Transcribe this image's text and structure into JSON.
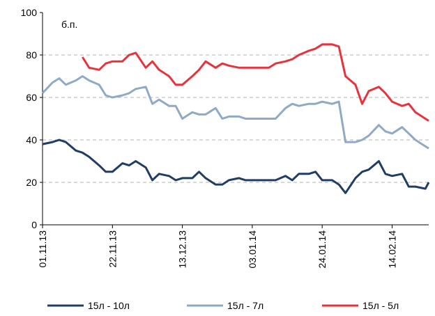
{
  "chart_data": {
    "type": "line",
    "annotation": "б.п.",
    "x": [
      "01.11.13",
      "04.11.13",
      "06.11.13",
      "08.11.13",
      "11.11.13",
      "13.11.13",
      "15.11.13",
      "18.11.13",
      "20.11.13",
      "22.11.13",
      "25.11.13",
      "27.11.13",
      "29.11.13",
      "02.12.13",
      "04.12.13",
      "06.12.13",
      "09.12.13",
      "11.12.13",
      "13.12.13",
      "16.12.13",
      "18.12.13",
      "20.12.13",
      "23.12.13",
      "25.12.13",
      "27.12.13",
      "30.12.13",
      "01.01.14",
      "03.01.14",
      "06.01.14",
      "08.01.14",
      "10.01.14",
      "13.01.14",
      "15.01.14",
      "17.01.14",
      "20.01.14",
      "22.01.14",
      "24.01.14",
      "27.01.14",
      "29.01.14",
      "31.01.14",
      "03.02.14",
      "05.02.14",
      "07.02.14",
      "10.02.14",
      "12.02.14",
      "14.02.14",
      "17.02.14",
      "19.02.14",
      "21.02.14",
      "24.02.14",
      "25.02.14"
    ],
    "series": [
      {
        "name": "15л - 10л",
        "color": "#1f3d66",
        "values": [
          38,
          39,
          40,
          39,
          35,
          34,
          32,
          28,
          25,
          25,
          29,
          28,
          30,
          27,
          21,
          24,
          23,
          21,
          22,
          22,
          25,
          22,
          19,
          19,
          21,
          22,
          21,
          21,
          21,
          21,
          21,
          23,
          21,
          24,
          24,
          25,
          21,
          21,
          19,
          15,
          22,
          25,
          26,
          30,
          24,
          23,
          24,
          18,
          18,
          17,
          20
        ]
      },
      {
        "name": "15л - 7л",
        "color": "#8eaac6",
        "values": [
          62,
          67,
          69,
          66,
          68,
          70,
          68,
          66,
          61,
          60,
          61,
          62,
          64,
          65,
          57,
          59,
          56,
          56,
          50,
          53,
          52,
          52,
          55,
          50,
          51,
          51,
          50,
          50,
          50,
          50,
          50,
          55,
          57,
          56,
          57,
          57,
          58,
          57,
          58,
          39,
          39,
          40,
          42,
          47,
          44,
          43,
          46,
          43,
          40,
          37,
          36
        ]
      },
      {
        "name": "15л - 5л",
        "color": "#e8323c",
        "values": [
          null,
          null,
          null,
          null,
          null,
          79,
          74,
          73,
          76,
          77,
          77,
          80,
          81,
          74,
          77,
          73,
          70,
          66,
          66,
          70,
          73,
          77,
          74,
          76,
          75,
          74,
          74,
          74,
          74,
          74,
          76,
          77,
          78,
          80,
          82,
          83,
          85,
          85,
          84,
          70,
          66,
          57,
          63,
          65,
          62,
          58,
          56,
          57,
          53,
          50,
          49
        ]
      }
    ],
    "xlim": [
      "01.11.13",
      "25.02.14"
    ],
    "xticks": [
      "01.11.13",
      "22.11.13",
      "13.12.13",
      "03.01.14",
      "24.01.14",
      "14.02.14"
    ],
    "ylim": [
      0,
      100
    ],
    "yticks": [
      0,
      20,
      40,
      60,
      80,
      100
    ],
    "grid": true,
    "legend": "bottom"
  }
}
